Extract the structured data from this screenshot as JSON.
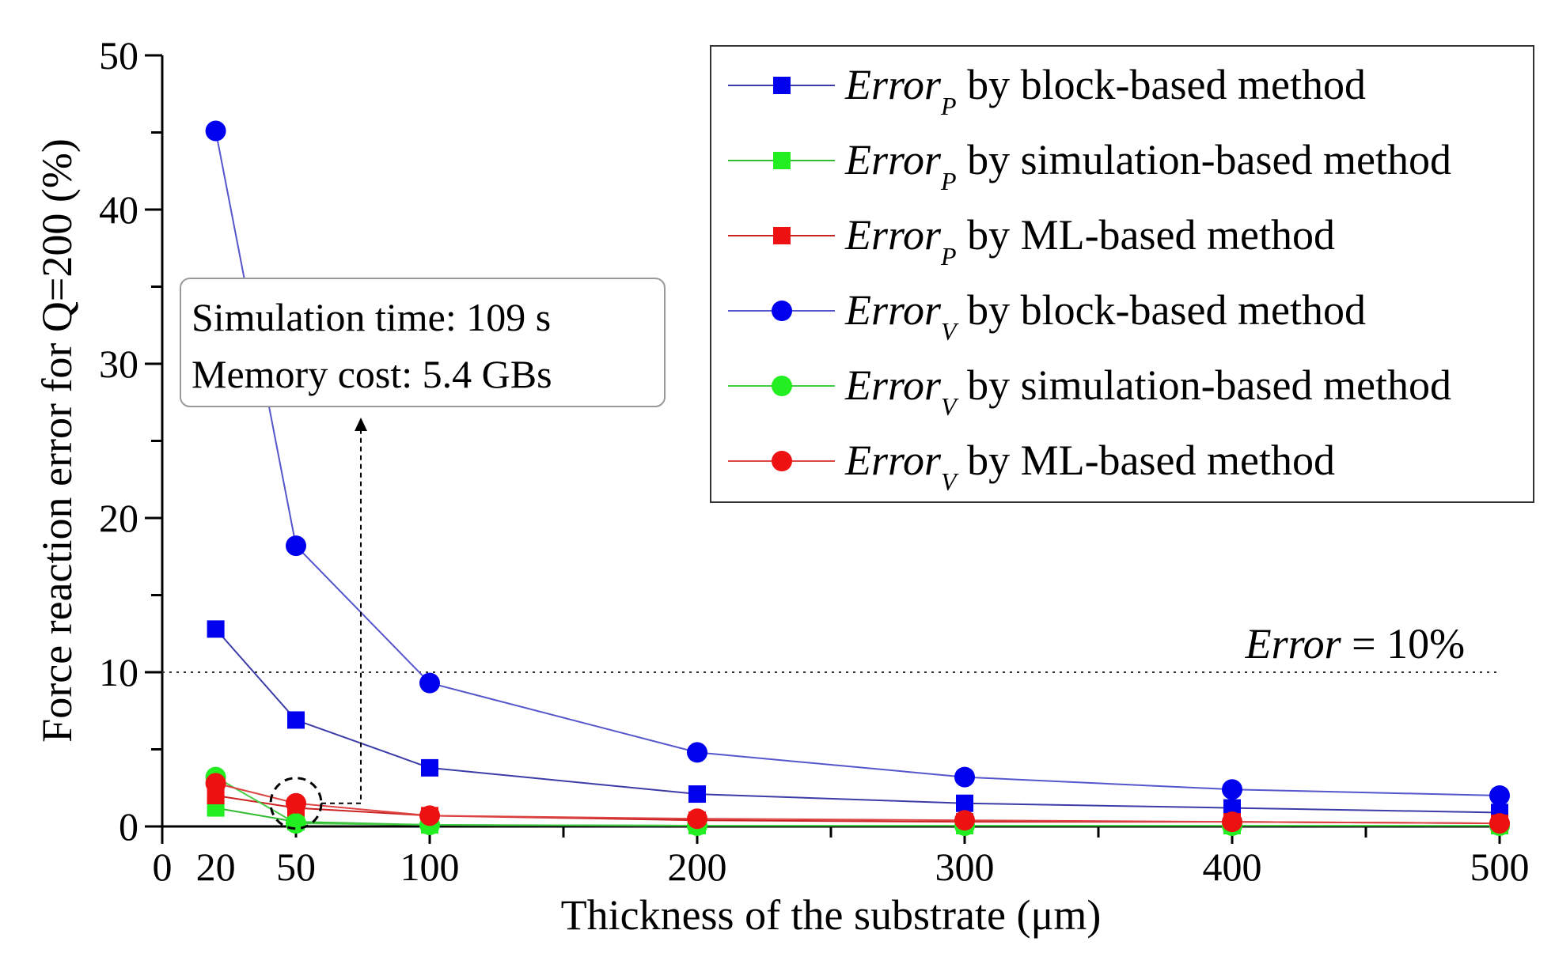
{
  "chart_data": {
    "type": "line",
    "title": "",
    "xlabel": "Thickness of the substrate (μm)",
    "ylabel": "Force reaction error for Q=200 (%)",
    "xlim": [
      0,
      500
    ],
    "ylim": [
      0,
      50
    ],
    "x_ticks": [
      0,
      20,
      50,
      100,
      200,
      300,
      400,
      500
    ],
    "y_ticks": [
      0,
      10,
      20,
      30,
      40,
      50
    ],
    "grid": false,
    "legend_position": "top-right",
    "x": [
      20,
      50,
      100,
      200,
      300,
      400,
      500
    ],
    "series": [
      {
        "name": "Error_P by block-based method",
        "prefix": "Error",
        "subscript": "P",
        "suffix": " by block-based method",
        "marker": "square",
        "color": "#0000ee",
        "line_color": "#3c3ca8",
        "values": [
          12.8,
          6.9,
          3.8,
          2.1,
          1.5,
          1.2,
          0.9
        ]
      },
      {
        "name": "Error_P by simulation-based method",
        "prefix": "Error",
        "subscript": "P",
        "suffix": " by simulation-based method",
        "marker": "square",
        "color": "#22ee22",
        "line_color": "#33bb33",
        "values": [
          1.2,
          0.3,
          0.1,
          0.05,
          0.05,
          0.05,
          0.05
        ]
      },
      {
        "name": "Error_P by ML-based method",
        "prefix": "Error",
        "subscript": "P",
        "suffix": " by ML-based method",
        "marker": "square",
        "color": "#ee1111",
        "line_color": "#cc2222",
        "values": [
          2.0,
          1.2,
          0.7,
          0.4,
          0.3,
          0.3,
          0.2
        ]
      },
      {
        "name": "Error_V by block-based method",
        "prefix": "Error",
        "subscript": "V",
        "suffix": " by block-based method",
        "marker": "circle",
        "color": "#0000ee",
        "line_color": "#5555cc",
        "values": [
          45.1,
          18.2,
          9.3,
          4.8,
          3.2,
          2.4,
          2.0
        ]
      },
      {
        "name": "Error_V by simulation-based method",
        "prefix": "Error",
        "subscript": "V",
        "suffix": " by simulation-based method",
        "marker": "circle",
        "color": "#22ee22",
        "line_color": "#44cc44",
        "values": [
          3.2,
          0.2,
          0.1,
          0.05,
          0.05,
          0.05,
          0.05
        ]
      },
      {
        "name": "Error_V by ML-based method",
        "prefix": "Error",
        "subscript": "V",
        "suffix": " by ML-based method",
        "marker": "circle",
        "color": "#ee1111",
        "line_color": "#dd4444",
        "values": [
          2.8,
          1.5,
          0.7,
          0.5,
          0.4,
          0.3,
          0.2
        ]
      }
    ],
    "reference_line": {
      "y": 10,
      "label_prefix": "Error",
      "label_suffix": " = 10%",
      "style": "dotted"
    },
    "annotation": {
      "lines": [
        "Simulation time: 109 s",
        "Memory cost: 5.4 GBs"
      ],
      "points_to": {
        "x": 50,
        "y": 1.5
      }
    }
  }
}
